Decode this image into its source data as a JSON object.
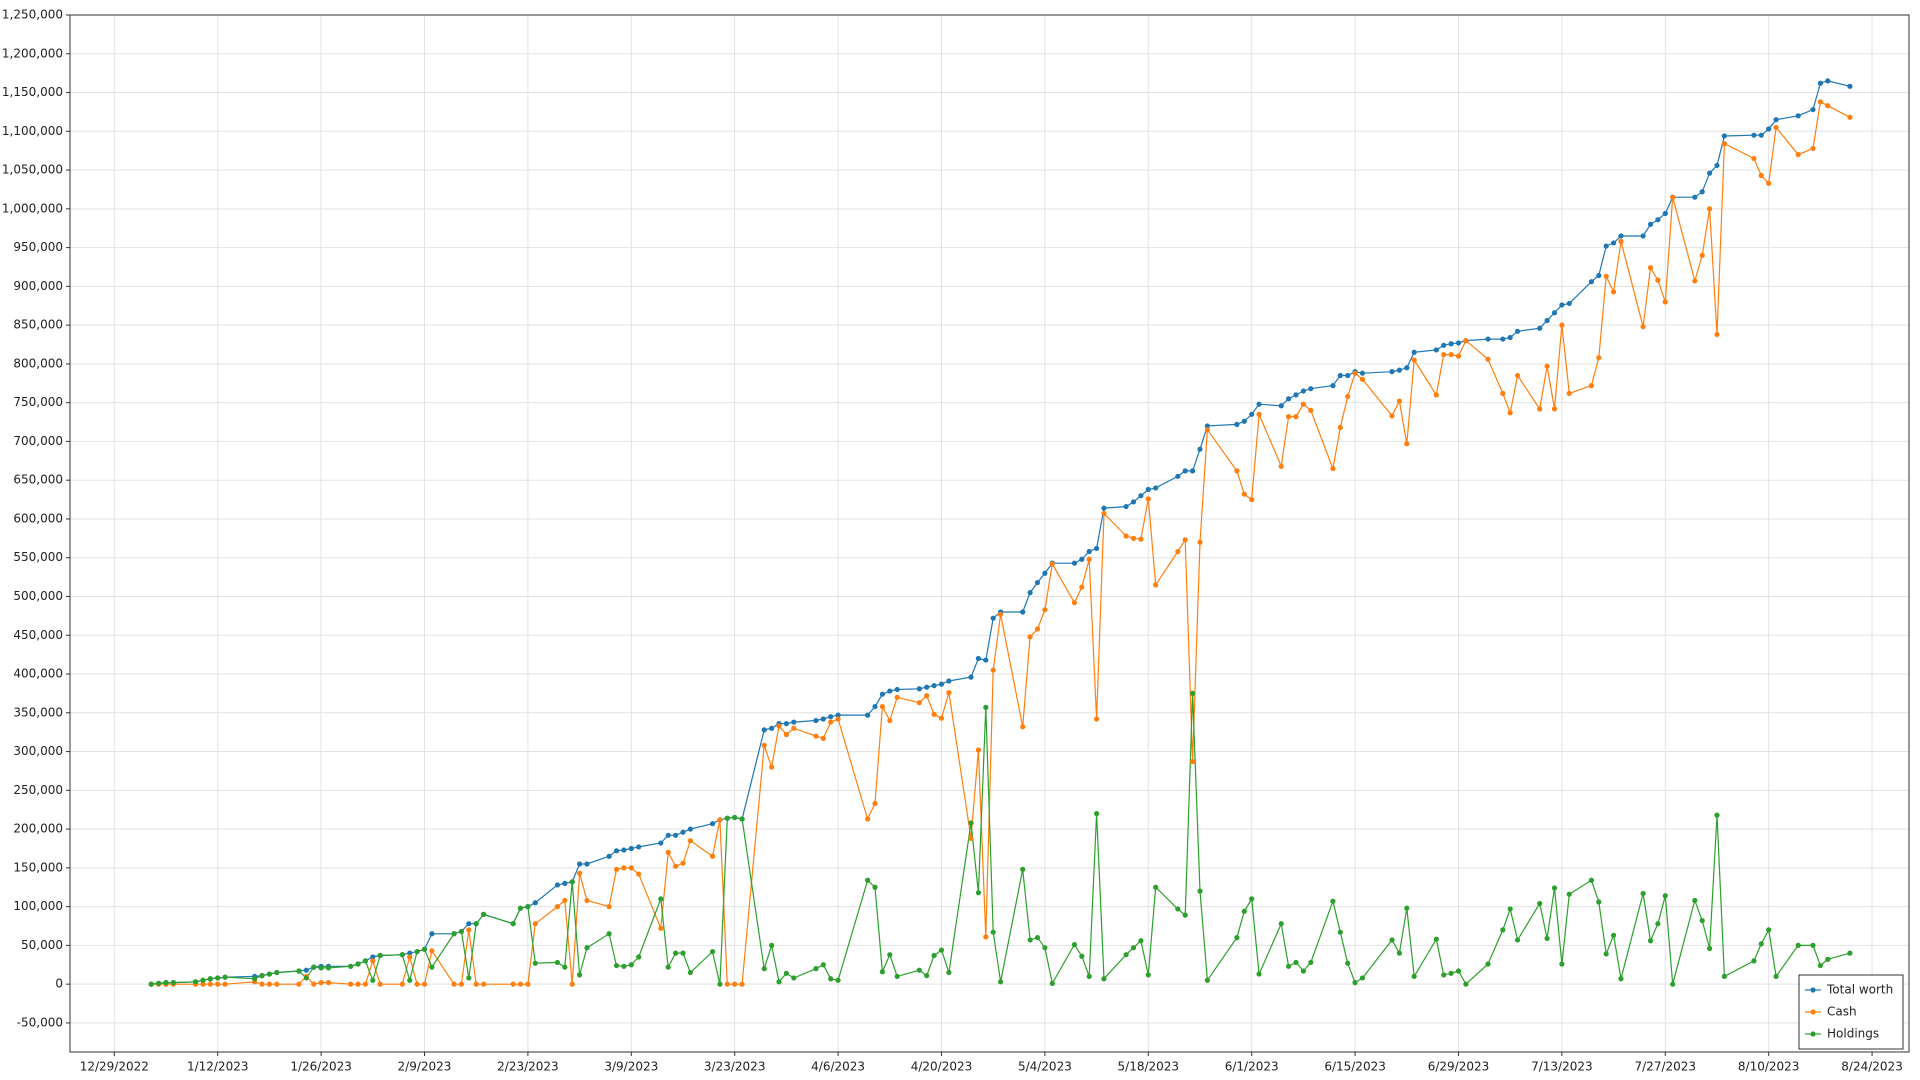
{
  "chart_data": {
    "type": "line",
    "x": [
      "2023-01-03",
      "2023-01-04",
      "2023-01-05",
      "2023-01-06",
      "2023-01-09",
      "2023-01-10",
      "2023-01-11",
      "2023-01-12",
      "2023-01-13",
      "2023-01-17",
      "2023-01-18",
      "2023-01-19",
      "2023-01-20",
      "2023-01-23",
      "2023-01-24",
      "2023-01-25",
      "2023-01-26",
      "2023-01-27",
      "2023-01-30",
      "2023-01-31",
      "2023-02-01",
      "2023-02-02",
      "2023-02-03",
      "2023-02-06",
      "2023-02-07",
      "2023-02-08",
      "2023-02-09",
      "2023-02-10",
      "2023-02-13",
      "2023-02-14",
      "2023-02-15",
      "2023-02-16",
      "2023-02-17",
      "2023-02-21",
      "2023-02-22",
      "2023-02-23",
      "2023-02-24",
      "2023-02-27",
      "2023-02-28",
      "2023-03-01",
      "2023-03-02",
      "2023-03-03",
      "2023-03-06",
      "2023-03-07",
      "2023-03-08",
      "2023-03-09",
      "2023-03-10",
      "2023-03-13",
      "2023-03-14",
      "2023-03-15",
      "2023-03-16",
      "2023-03-17",
      "2023-03-20",
      "2023-03-21",
      "2023-03-22",
      "2023-03-23",
      "2023-03-24",
      "2023-03-27",
      "2023-03-28",
      "2023-03-29",
      "2023-03-30",
      "2023-03-31",
      "2023-04-03",
      "2023-04-04",
      "2023-04-05",
      "2023-04-06",
      "2023-04-10",
      "2023-04-11",
      "2023-04-12",
      "2023-04-13",
      "2023-04-14",
      "2023-04-17",
      "2023-04-18",
      "2023-04-19",
      "2023-04-20",
      "2023-04-21",
      "2023-04-24",
      "2023-04-25",
      "2023-04-26",
      "2023-04-27",
      "2023-04-28",
      "2023-05-01",
      "2023-05-02",
      "2023-05-03",
      "2023-05-04",
      "2023-05-05",
      "2023-05-08",
      "2023-05-09",
      "2023-05-10",
      "2023-05-11",
      "2023-05-12",
      "2023-05-15",
      "2023-05-16",
      "2023-05-17",
      "2023-05-18",
      "2023-05-19",
      "2023-05-22",
      "2023-05-23",
      "2023-05-24",
      "2023-05-25",
      "2023-05-26",
      "2023-05-30",
      "2023-05-31",
      "2023-06-01",
      "2023-06-02",
      "2023-06-05",
      "2023-06-06",
      "2023-06-07",
      "2023-06-08",
      "2023-06-09",
      "2023-06-12",
      "2023-06-13",
      "2023-06-14",
      "2023-06-15",
      "2023-06-16",
      "2023-06-20",
      "2023-06-21",
      "2023-06-22",
      "2023-06-23",
      "2023-06-26",
      "2023-06-27",
      "2023-06-28",
      "2023-06-29",
      "2023-06-30",
      "2023-07-03",
      "2023-07-05",
      "2023-07-06",
      "2023-07-07",
      "2023-07-10",
      "2023-07-11",
      "2023-07-12",
      "2023-07-13",
      "2023-07-14",
      "2023-07-17",
      "2023-07-18",
      "2023-07-19",
      "2023-07-20",
      "2023-07-21",
      "2023-07-24",
      "2023-07-25",
      "2023-07-26",
      "2023-07-27",
      "2023-07-28",
      "2023-07-31",
      "2023-08-01",
      "2023-08-02",
      "2023-08-03",
      "2023-08-04",
      "2023-08-08",
      "2023-08-09",
      "2023-08-10",
      "2023-08-11",
      "2023-08-14",
      "2023-08-16",
      "2023-08-17",
      "2023-08-18",
      "2023-08-21"
    ],
    "series": [
      {
        "name": "Total worth",
        "color": "#1f77b4",
        "values": [
          0,
          1000,
          2000,
          2000,
          3000,
          5000,
          7000,
          8000,
          9000,
          10000,
          11000,
          13000,
          15000,
          17000,
          18000,
          22000,
          23000,
          23000,
          23000,
          26000,
          30000,
          35000,
          37000,
          38000,
          40000,
          42000,
          45000,
          65000,
          65000,
          68000,
          78000,
          78000,
          90000,
          78000,
          98000,
          100000,
          105000,
          128000,
          130000,
          132000,
          155000,
          155000,
          165000,
          172000,
          173000,
          175000,
          177000,
          182000,
          192000,
          192000,
          196000,
          200000,
          207000,
          212000,
          214000,
          215000,
          213000,
          328000,
          330000,
          336000,
          336000,
          338000,
          340000,
          342000,
          345000,
          347000,
          347000,
          358000,
          374000,
          378000,
          380000,
          381000,
          383000,
          385000,
          387000,
          391000,
          396000,
          420000,
          418000,
          472000,
          480000,
          480000,
          505000,
          518000,
          530000,
          543000,
          543000,
          548000,
          558000,
          562000,
          614000,
          616000,
          622000,
          630000,
          638000,
          640000,
          655000,
          662000,
          662000,
          690000,
          720000,
          722000,
          726000,
          735000,
          748000,
          746000,
          755000,
          760000,
          765000,
          768000,
          772000,
          785000,
          785000,
          790000,
          788000,
          790000,
          792000,
          795000,
          815000,
          818000,
          824000,
          826000,
          827000,
          830000,
          832000,
          832000,
          834000,
          842000,
          846000,
          856000,
          866000,
          876000,
          878000,
          906000,
          914000,
          952000,
          956000,
          965000,
          965000,
          980000,
          986000,
          994000,
          1015000,
          1015000,
          1022000,
          1046000,
          1056000,
          1094000,
          1095000,
          1095000,
          1103000,
          1115000,
          1120000,
          1128000,
          1162000,
          1165000,
          1158000
        ]
      },
      {
        "name": "Cash",
        "color": "#ff7f0e",
        "values": [
          0,
          0,
          0,
          0,
          0,
          0,
          0,
          0,
          0,
          3000,
          0,
          0,
          0,
          0,
          10000,
          0,
          2000,
          2000,
          0,
          0,
          0,
          30000,
          0,
          0,
          35000,
          0,
          0,
          43000,
          0,
          0,
          70000,
          0,
          0,
          0,
          0,
          0,
          78000,
          100000,
          108000,
          0,
          143000,
          108000,
          100000,
          148000,
          150000,
          150000,
          142000,
          72000,
          170000,
          152000,
          156000,
          185000,
          165000,
          212000,
          0,
          0,
          0,
          308000,
          280000,
          333000,
          322000,
          330000,
          320000,
          317000,
          338000,
          342000,
          213000,
          233000,
          358000,
          340000,
          370000,
          363000,
          372000,
          348000,
          343000,
          376000,
          188000,
          302000,
          61000,
          405000,
          477000,
          332000,
          448000,
          458000,
          483000,
          542000,
          492000,
          512000,
          548000,
          342000,
          607000,
          578000,
          575000,
          574000,
          626000,
          515000,
          558000,
          573000,
          287000,
          570000,
          715000,
          662000,
          632000,
          625000,
          735000,
          668000,
          732000,
          732000,
          748000,
          740000,
          665000,
          718000,
          758000,
          788000,
          780000,
          733000,
          752000,
          697000,
          805000,
          760000,
          812000,
          812000,
          810000,
          830000,
          806000,
          762000,
          737000,
          785000,
          742000,
          797000,
          742000,
          850000,
          762000,
          772000,
          808000,
          913000,
          893000,
          958000,
          848000,
          924000,
          908000,
          880000,
          1015000,
          907000,
          940000,
          1000000,
          838000,
          1084000,
          1065000,
          1043000,
          1033000,
          1105000,
          1070000,
          1078000,
          1138000,
          1133000,
          1118000
        ]
      },
      {
        "name": "Holdings",
        "color": "#2ca02c",
        "values": [
          0,
          1000,
          2000,
          2000,
          3000,
          5000,
          7000,
          8000,
          9000,
          7000,
          11000,
          13000,
          15000,
          17000,
          8000,
          22000,
          21000,
          21000,
          23000,
          26000,
          30000,
          5000,
          37000,
          38000,
          5000,
          42000,
          45000,
          22000,
          65000,
          68000,
          8000,
          78000,
          90000,
          78000,
          98000,
          100000,
          27000,
          28000,
          22000,
          132000,
          12000,
          47000,
          65000,
          24000,
          23000,
          25000,
          35000,
          110000,
          22000,
          40000,
          40000,
          15000,
          42000,
          0,
          214000,
          215000,
          213000,
          20000,
          50000,
          3000,
          14000,
          8000,
          20000,
          25000,
          7000,
          5000,
          134000,
          125000,
          16000,
          38000,
          10000,
          18000,
          11000,
          37000,
          44000,
          15000,
          208000,
          118000,
          357000,
          67000,
          3000,
          148000,
          57000,
          60000,
          47000,
          1000,
          51000,
          36000,
          10000,
          220000,
          7000,
          38000,
          47000,
          56000,
          12000,
          125000,
          97000,
          89000,
          375000,
          120000,
          5000,
          60000,
          94000,
          110000,
          13000,
          78000,
          23000,
          28000,
          17000,
          28000,
          107000,
          67000,
          27000,
          2000,
          8000,
          57000,
          40000,
          98000,
          10000,
          58000,
          12000,
          14000,
          17000,
          0,
          26000,
          70000,
          97000,
          57000,
          104000,
          59000,
          124000,
          26000,
          116000,
          134000,
          106000,
          39000,
          63000,
          7000,
          117000,
          56000,
          78000,
          114000,
          0,
          108000,
          82000,
          46000,
          218000,
          10000,
          30000,
          52000,
          70000,
          10000,
          50000,
          50000,
          24000,
          32000,
          40000
        ]
      }
    ],
    "xlim": [
      "2022-12-23",
      "2023-08-29"
    ],
    "xticks": [
      {
        "value": "2022-12-29",
        "label": "12/29/2022"
      },
      {
        "value": "2023-01-12",
        "label": "1/12/2023"
      },
      {
        "value": "2023-01-26",
        "label": "1/26/2023"
      },
      {
        "value": "2023-02-09",
        "label": "2/9/2023"
      },
      {
        "value": "2023-02-23",
        "label": "2/23/2023"
      },
      {
        "value": "2023-03-09",
        "label": "3/9/2023"
      },
      {
        "value": "2023-03-23",
        "label": "3/23/2023"
      },
      {
        "value": "2023-04-06",
        "label": "4/6/2023"
      },
      {
        "value": "2023-04-20",
        "label": "4/20/2023"
      },
      {
        "value": "2023-05-04",
        "label": "5/4/2023"
      },
      {
        "value": "2023-05-18",
        "label": "5/18/2023"
      },
      {
        "value": "2023-06-01",
        "label": "6/1/2023"
      },
      {
        "value": "2023-06-15",
        "label": "6/15/2023"
      },
      {
        "value": "2023-06-29",
        "label": "6/29/2023"
      },
      {
        "value": "2023-07-13",
        "label": "7/13/2023"
      },
      {
        "value": "2023-07-27",
        "label": "7/27/2023"
      },
      {
        "value": "2023-08-10",
        "label": "8/10/2023"
      },
      {
        "value": "2023-08-24",
        "label": "8/24/2023"
      }
    ],
    "ylim": [
      -87500,
      1250000
    ],
    "yticks": [
      {
        "value": -50000,
        "label": "-50,000"
      },
      0,
      {
        "value": 50000,
        "label": "50,000"
      },
      {
        "value": 100000,
        "label": "100,000"
      },
      {
        "value": 150000,
        "label": "150,000"
      },
      {
        "value": 200000,
        "label": "200,000"
      },
      {
        "value": 250000,
        "label": "250,000"
      },
      {
        "value": 300000,
        "label": "300,000"
      },
      {
        "value": 350000,
        "label": "350,000"
      },
      {
        "value": 400000,
        "label": "400,000"
      },
      {
        "value": 450000,
        "label": "450,000"
      },
      {
        "value": 500000,
        "label": "500,000"
      },
      {
        "value": 550000,
        "label": "550,000"
      },
      {
        "value": 600000,
        "label": "600,000"
      },
      {
        "value": 650000,
        "label": "650,000"
      },
      {
        "value": 700000,
        "label": "700,000"
      },
      {
        "value": 750000,
        "label": "750,000"
      },
      {
        "value": 800000,
        "label": "800,000"
      },
      {
        "value": 850000,
        "label": "850,000"
      },
      {
        "value": 900000,
        "label": "900,000"
      },
      {
        "value": 950000,
        "label": "950,000"
      },
      {
        "value": 1000000,
        "label": "1,000,000"
      },
      {
        "value": 1050000,
        "label": "1,050,000"
      },
      {
        "value": 1100000,
        "label": "1,100,000"
      },
      {
        "value": 1150000,
        "label": "1,150,000"
      },
      {
        "value": 1200000,
        "label": "1,200,000"
      },
      {
        "value": 1250000,
        "label": "1,250,000"
      }
    ],
    "grid": true,
    "legend": "bottom-right",
    "markers": true
  }
}
